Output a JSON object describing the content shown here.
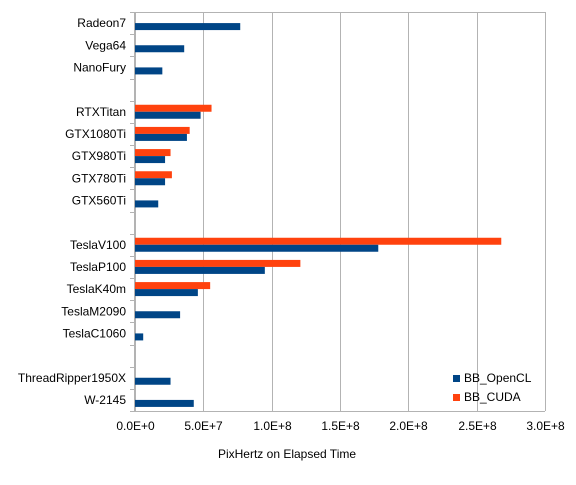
{
  "chart_data": {
    "type": "bar",
    "orientation": "horizontal",
    "title": "",
    "xlabel": "PixHertz on Elapsed Time",
    "ylabel": "",
    "xlim": [
      0,
      300000000
    ],
    "x_ticks": [
      0,
      50000000,
      100000000,
      150000000,
      200000000,
      250000000,
      300000000
    ],
    "x_tick_labels": [
      "0.0E+0",
      "5.0E+7",
      "1.0E+8",
      "1.5E+8",
      "2.0E+8",
      "2.5E+8",
      "3.0E+8"
    ],
    "grid": "vertical",
    "legend_position": "bottom-right",
    "categories": [
      "Radeon7",
      "Vega64",
      "NanoFury",
      "",
      "RTXTitan",
      "GTX1080Ti",
      "GTX980Ti",
      "GTX780Ti",
      "GTX560Ti",
      "",
      "TeslaV100",
      "TeslaP100",
      "TeslaK40m",
      "TeslaM2090",
      "TeslaC1060",
      "",
      "ThreadRipper1950X",
      "W-2145"
    ],
    "series": [
      {
        "name": "BB_CUDA",
        "color": "#ff420e",
        "values": [
          null,
          null,
          null,
          null,
          56000000,
          40000000,
          26000000,
          27000000,
          null,
          null,
          268000000,
          121000000,
          55000000,
          null,
          null,
          null,
          null,
          null
        ]
      },
      {
        "name": "BB_OpenCL",
        "color": "#004586",
        "values": [
          77000000,
          36000000,
          20000000,
          null,
          48000000,
          38000000,
          22000000,
          22000000,
          17000000,
          null,
          178000000,
          95000000,
          46000000,
          33000000,
          6000000,
          null,
          26000000,
          43000000
        ]
      }
    ],
    "legend": [
      {
        "name": "BB_OpenCL",
        "color": "#004586"
      },
      {
        "name": "BB_CUDA",
        "color": "#ff420e"
      }
    ]
  }
}
